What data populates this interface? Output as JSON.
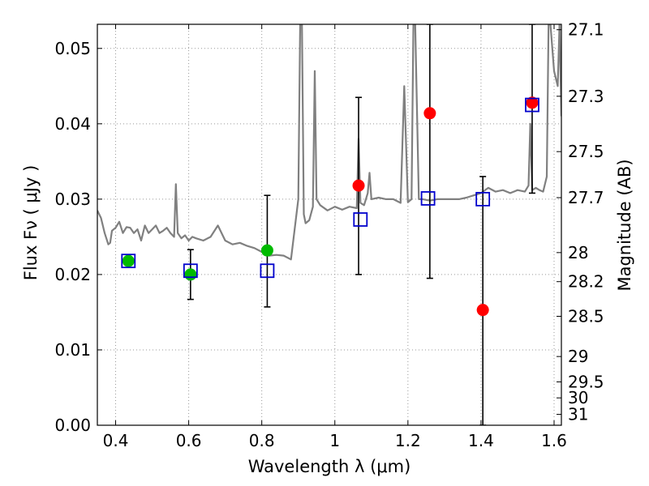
{
  "chart_data": {
    "type": "scatter",
    "title": "",
    "xlabel": "Wavelength  λ (μm)",
    "ylabel": "Flux  Fν  ( μJy )",
    "ylabel_right": "Magnitude (AB)",
    "xlim": [
      0.35,
      1.62
    ],
    "ylim": [
      0.0,
      0.0532
    ],
    "grid": true,
    "x_ticks": [
      0.4,
      0.6,
      0.8,
      1.0,
      1.2,
      1.4,
      1.6
    ],
    "x_tick_labels": [
      "0.4",
      "0.6",
      "0.8",
      "1",
      "1.2",
      "1.4",
      "1.6"
    ],
    "y_ticks": [
      0.0,
      0.01,
      0.02,
      0.03,
      0.04,
      0.05
    ],
    "y_tick_labels": [
      "0.00",
      "0.01",
      "0.02",
      "0.03",
      "0.04",
      "0.05"
    ],
    "right_tick_labels": [
      "27.1",
      "27.3",
      "27.5",
      "27.7",
      "28",
      "28.2",
      "28.5",
      "29",
      "29.5",
      "30",
      "31"
    ],
    "right_tick_values": [
      27.1,
      27.3,
      27.5,
      27.7,
      28.0,
      28.2,
      28.5,
      29.0,
      29.5,
      30.0,
      31.0
    ],
    "colors": {
      "spectrum": "#808080",
      "model": "#0000cc",
      "detection": "#00bb00",
      "photometry": "#ff0000",
      "errorbar": "#000000",
      "grid": "#999999"
    },
    "series": [
      {
        "type": "line",
        "color": "#808080",
        "x": [
          0.35,
          0.36,
          0.37,
          0.38,
          0.385,
          0.39,
          0.4,
          0.41,
          0.42,
          0.43,
          0.44,
          0.45,
          0.46,
          0.47,
          0.48,
          0.49,
          0.5,
          0.51,
          0.52,
          0.53,
          0.54,
          0.55,
          0.56,
          0.565,
          0.57,
          0.58,
          0.59,
          0.6,
          0.61,
          0.62,
          0.64,
          0.66,
          0.68,
          0.7,
          0.72,
          0.74,
          0.76,
          0.78,
          0.8,
          0.82,
          0.84,
          0.86,
          0.88,
          0.9,
          0.905,
          0.91,
          0.915,
          0.92,
          0.93,
          0.94,
          0.945,
          0.95,
          0.96,
          0.98,
          1.0,
          1.02,
          1.04,
          1.06,
          1.065,
          1.07,
          1.08,
          1.09,
          1.095,
          1.1,
          1.12,
          1.14,
          1.16,
          1.18,
          1.19,
          1.2,
          1.21,
          1.215,
          1.22,
          1.23,
          1.24,
          1.26,
          1.28,
          1.3,
          1.32,
          1.34,
          1.36,
          1.38,
          1.4,
          1.42,
          1.44,
          1.46,
          1.48,
          1.5,
          1.52,
          1.53,
          1.535,
          1.54,
          1.55,
          1.56,
          1.57,
          1.58,
          1.585,
          1.59,
          1.6,
          1.61,
          1.615,
          1.62
        ],
        "y": [
          0.0285,
          0.0275,
          0.0255,
          0.024,
          0.0242,
          0.0258,
          0.0262,
          0.027,
          0.0255,
          0.0263,
          0.0262,
          0.0255,
          0.026,
          0.0245,
          0.0265,
          0.0255,
          0.026,
          0.0265,
          0.0255,
          0.0258,
          0.0262,
          0.0255,
          0.025,
          0.032,
          0.0255,
          0.0248,
          0.0252,
          0.0245,
          0.025,
          0.0248,
          0.0245,
          0.025,
          0.0265,
          0.0245,
          0.024,
          0.0242,
          0.0238,
          0.0235,
          0.023,
          0.0225,
          0.0226,
          0.0225,
          0.022,
          0.03,
          0.0532,
          0.0532,
          0.028,
          0.0268,
          0.0272,
          0.029,
          0.047,
          0.03,
          0.0292,
          0.0285,
          0.029,
          0.0286,
          0.029,
          0.0288,
          0.038,
          0.0295,
          0.0292,
          0.0308,
          0.0335,
          0.03,
          0.0302,
          0.03,
          0.03,
          0.0295,
          0.045,
          0.0296,
          0.03,
          0.0532,
          0.0532,
          0.03,
          0.03,
          0.0298,
          0.03,
          0.03,
          0.03,
          0.03,
          0.0302,
          0.0305,
          0.0308,
          0.0315,
          0.031,
          0.0312,
          0.0308,
          0.0312,
          0.031,
          0.0318,
          0.04,
          0.0312,
          0.0315,
          0.0312,
          0.031,
          0.033,
          0.0532,
          0.0532,
          0.047,
          0.045,
          0.0532,
          0.041
        ]
      },
      {
        "type": "square-markers",
        "color": "#0000cc",
        "x": [
          0.435,
          0.605,
          0.815,
          1.07,
          1.255,
          1.405,
          1.54
        ],
        "y": [
          0.0218,
          0.0205,
          0.0205,
          0.0273,
          0.0301,
          0.03,
          0.0425
        ]
      },
      {
        "type": "circle-markers",
        "color": "#00bb00",
        "x": [
          0.435,
          0.605,
          0.815
        ],
        "y": [
          0.0218,
          0.02,
          0.0232
        ]
      },
      {
        "type": "circle-markers",
        "color": "#ff0000",
        "x": [
          1.065,
          1.26,
          1.405,
          1.54
        ],
        "y": [
          0.0318,
          0.0414,
          0.0153,
          0.0428
        ]
      }
    ],
    "error_bars": [
      {
        "x": 0.605,
        "low": 0.0167,
        "high": 0.0233
      },
      {
        "x": 0.815,
        "low": 0.0157,
        "high": 0.0305
      },
      {
        "x": 1.065,
        "low": 0.02,
        "high": 0.0435
      },
      {
        "x": 1.26,
        "low": 0.0195,
        "high": 0.0532
      },
      {
        "x": 1.405,
        "low": 0.0,
        "high": 0.033
      },
      {
        "x": 1.54,
        "low": 0.0308,
        "high": 0.0532
      }
    ]
  }
}
